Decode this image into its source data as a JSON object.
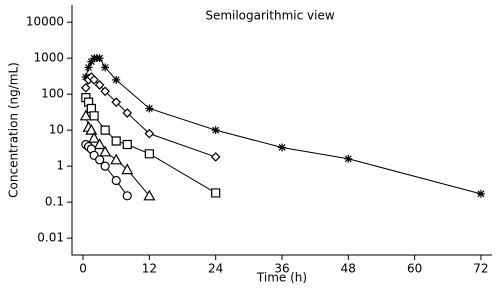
{
  "chart_data": {
    "type": "line",
    "title": "Semilogarithmic view",
    "x_label": "Time (h)",
    "y_label": "Concentration (ng/mL)",
    "log_y": true,
    "xlim": [
      -2,
      74
    ],
    "xticks": [
      0,
      12,
      24,
      36,
      48,
      60,
      72
    ],
    "ylim": [
      0.0034,
      30000
    ],
    "yticks": [
      0.01,
      0.1,
      1,
      10,
      100,
      1000,
      10000
    ],
    "series": [
      {
        "marker": "star",
        "color": "#000000",
        "x": [
          0.5,
          1,
          1.5,
          2,
          2.5,
          3,
          4,
          6,
          12,
          24,
          36,
          48,
          72
        ],
        "values": [
          300,
          550,
          800,
          1000,
          1000,
          1000,
          550,
          250,
          40,
          10,
          3.3,
          1.6,
          0.17
        ]
      },
      {
        "marker": "diamond",
        "color": "#000000",
        "x": [
          0.5,
          1,
          1.5,
          2,
          3,
          4,
          6,
          8,
          12,
          24
        ],
        "values": [
          150,
          250,
          300,
          250,
          180,
          120,
          60,
          30,
          8,
          1.8
        ]
      },
      {
        "marker": "square",
        "color": "#000000",
        "x": [
          0.5,
          1,
          1.5,
          2,
          4,
          6,
          8,
          12,
          24
        ],
        "values": [
          80,
          60,
          40,
          25,
          10,
          5,
          4,
          2.2,
          0.18
        ]
      },
      {
        "marker": "triangle",
        "color": "#000000",
        "x": [
          0.5,
          1,
          1.5,
          2,
          3,
          4,
          6,
          8,
          12
        ],
        "values": [
          25,
          12,
          10,
          6,
          4,
          2.5,
          1.5,
          0.8,
          0.15
        ]
      },
      {
        "marker": "circle",
        "color": "#000000",
        "x": [
          0.5,
          1,
          1.5,
          2,
          3,
          4,
          6,
          8
        ],
        "values": [
          4,
          3.5,
          3,
          2,
          1.5,
          1,
          0.4,
          0.15
        ]
      }
    ]
  }
}
